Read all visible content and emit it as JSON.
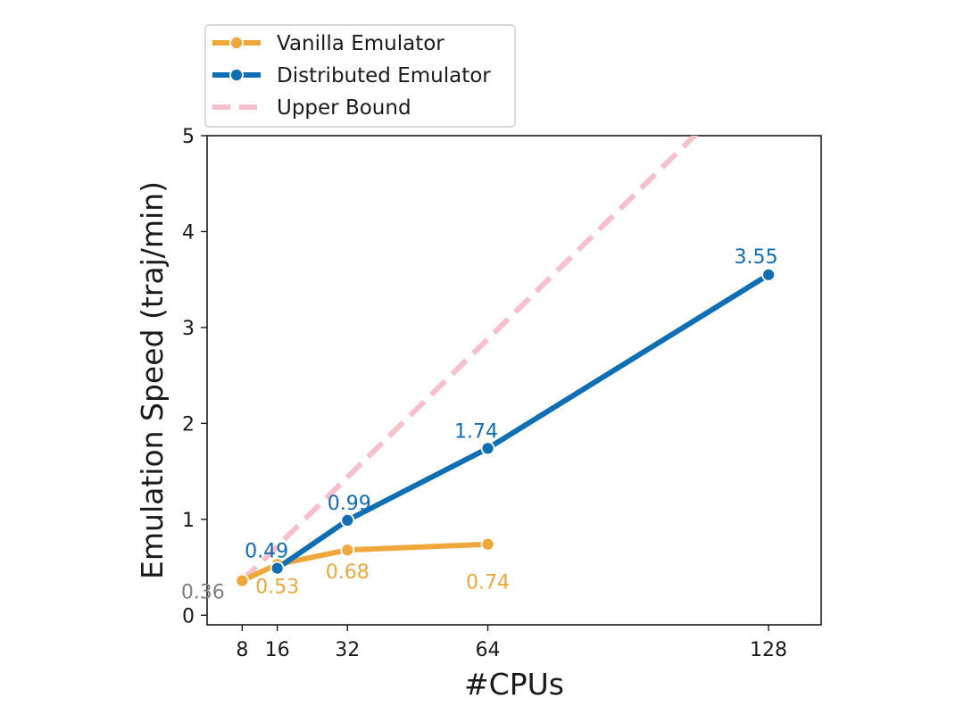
{
  "chart_data": {
    "type": "line",
    "title": "",
    "xlabel": "#CPUs",
    "ylabel": "Emulation Speed (traj/min)",
    "x_ticks": [
      8,
      16,
      32,
      64,
      128
    ],
    "y_ticks": [
      0,
      1,
      2,
      3,
      4,
      5
    ],
    "xlim": [
      0,
      140
    ],
    "ylim": [
      -0.1,
      5
    ],
    "grid": false,
    "legend_placement": "top-left, above plot",
    "series": [
      {
        "name": "Vanilla Emulator",
        "color": "#F0A73A",
        "style": "solid",
        "marker": "circle",
        "x": [
          8,
          16,
          32,
          64
        ],
        "y": [
          0.36,
          0.53,
          0.68,
          0.74
        ],
        "labels": [
          "0.36",
          "0.53",
          "0.68",
          "0.74"
        ]
      },
      {
        "name": "Distributed Emulator",
        "color": "#0F6EB4",
        "style": "solid",
        "marker": "circle",
        "x": [
          16,
          32,
          64,
          128
        ],
        "y": [
          0.49,
          0.99,
          1.74,
          3.55
        ],
        "labels": [
          "0.49",
          "0.99",
          "1.74",
          "3.55"
        ]
      },
      {
        "name": "Upper Bound",
        "color": "#F7C0CC",
        "style": "dashed",
        "marker": "none",
        "x": [
          8,
          112
        ],
        "y": [
          0.36,
          5.04
        ]
      }
    ],
    "label_colors": {
      "first_point": "#808080"
    }
  }
}
